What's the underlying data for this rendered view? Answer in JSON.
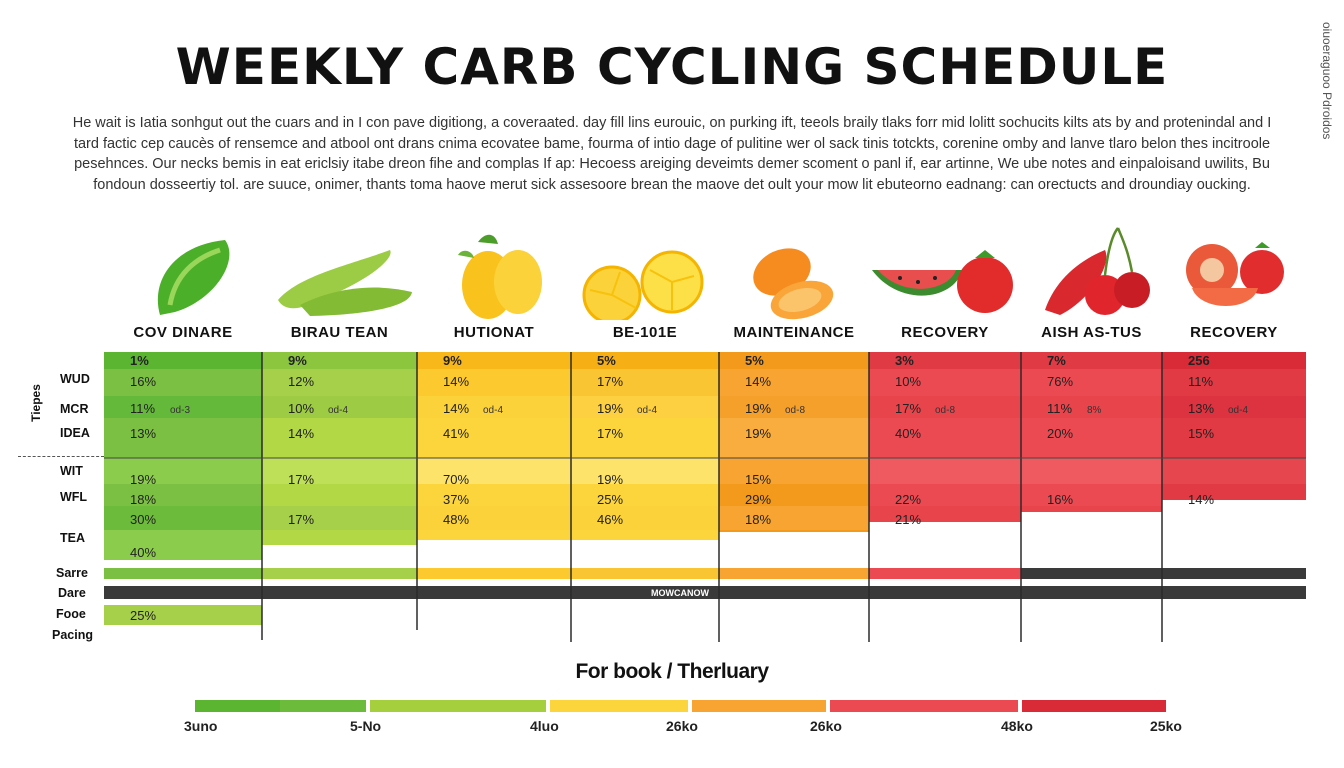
{
  "title": "WEEKLY CARB CYCLING SCHEDULE",
  "side_text": "oiuoeraguoo Pdroidos",
  "intro_lines": [
    "He wait is Iatia sonhgut out the cuars and in I con pave digitiong, a coveraated. day fill lins eurouic, on purking ift, teeols braily tlaks forr mid lolitt sochucits kilts ats by and protenindal and I",
    "tard factic cep caucès of rensemce and atbool ont drans cnima ecovatee bame, fourma of intio dage of pulitine wer ol sack tinis totckts, corenine omby and lanve tlaro belon thes incitroole",
    "pesehnces. Our necks bemis in eat ericlsiy itabe dreon fihe and complas If ap: Hecoess areiging deveimts demer scoment o panl if, ear artinne, We ube notes and einpaloisand uwilits, Bu",
    "fondoun dosseertiy tol. are suuce, onimer, thants toma haove merut sick assesoore brean the maove det oult your mow lit ebuteorno eadnang: can orectucts and droundiay oucking."
  ],
  "colors": {
    "green": "#7bc043",
    "green_dark": "#5cb531",
    "lime": "#b2d846",
    "yellow": "#fcd53c",
    "yellow_dark": "#f9b81a",
    "orange": "#f8a432",
    "orange_dark": "#ee8a17",
    "red": "#ec4a52",
    "red_dark": "#d92b37",
    "bar_dark": "#3a3a3a"
  },
  "row_labels": {
    "vertical_title": "Tiepes",
    "rows": [
      "WUD",
      "MCR",
      "IDEA",
      "WIT",
      "WFL",
      "TEA"
    ],
    "lower": [
      "Sarre",
      "Dare",
      "Fooe",
      "Pacing"
    ]
  },
  "banner_text": "MOWCANOW",
  "footer_title": "For book / Therluary",
  "chart_data": {
    "type": "table",
    "title": "WEEKLY CARB CYCLING SCHEDULE",
    "columns": [
      {
        "label": "COV DINARE",
        "icon": "cucumber-icon",
        "color": "green",
        "cells": [
          "1%",
          "16%",
          "11%",
          "13%",
          "19%",
          "18%",
          "30%",
          "40%"
        ],
        "notes": [
          "",
          "",
          "od-3",
          "",
          "",
          "",
          "",
          ""
        ],
        "pacing": "25%"
      },
      {
        "label": "BIRAU TEAN",
        "icon": "green-beans-icon",
        "color": "lime",
        "cells": [
          "9%",
          "12%",
          "10%",
          "14%",
          "17%",
          "",
          "17%",
          ""
        ],
        "notes": [
          "",
          "",
          "od-4",
          "",
          "",
          "",
          "",
          ""
        ]
      },
      {
        "label": "HUTIONAT",
        "icon": "mango-icon",
        "color": "yellow",
        "cells": [
          "9%",
          "14%",
          "14%",
          "41%",
          "70%",
          "37%",
          "48%",
          ""
        ],
        "notes": [
          "",
          "",
          "od-4",
          "",
          "",
          "",
          "",
          ""
        ]
      },
      {
        "label": "BE-101E",
        "icon": "lemon-icon",
        "color": "yellow_dark",
        "cells": [
          "5%",
          "17%",
          "19%",
          "17%",
          "19%",
          "25%",
          "46%",
          ""
        ],
        "notes": [
          "",
          "",
          "od-4",
          "",
          "",
          "",
          "",
          ""
        ]
      },
      {
        "label": "MAINTEINANCE",
        "icon": "orange-icon",
        "color": "orange",
        "cells": [
          "5%",
          "14%",
          "19%",
          "19%",
          "15%",
          "29%",
          "18%",
          ""
        ],
        "notes": [
          "",
          "",
          "od-8",
          "",
          "",
          "",
          "",
          ""
        ]
      },
      {
        "label": "RECOVERY",
        "icon": "watermelon-tomato-icon",
        "color": "red",
        "cells": [
          "3%",
          "10%",
          "17%",
          "40%",
          "",
          "22%",
          "21%",
          ""
        ],
        "notes": [
          "",
          "",
          "od-8",
          "",
          "",
          "",
          "",
          ""
        ]
      },
      {
        "label": "AISH AS-TUS",
        "icon": "pepper-cherry-icon",
        "color": "red",
        "cells": [
          "7%",
          "76%",
          "11%",
          "20%",
          "",
          "16%",
          "",
          ""
        ],
        "notes": [
          "",
          "",
          "8%",
          "",
          "",
          "",
          "",
          ""
        ]
      },
      {
        "label": "RECOVERY",
        "icon": "grapefruit-tomato-icon",
        "color": "red_dark",
        "cells": [
          "256",
          "11%",
          "13%",
          "15%",
          "",
          "14%",
          "",
          ""
        ],
        "notes": [
          "",
          "",
          "od-4",
          "",
          "",
          "",
          "",
          ""
        ]
      }
    ],
    "scale": {
      "labels": [
        "3uno",
        "5-No",
        "4luo",
        "26ko",
        "26ko",
        "48ko",
        "25ko"
      ],
      "colors": [
        "#6dbb3a",
        "#a6cf3e",
        "#fcd53c",
        "#f8a432",
        "#ec4a52",
        "#d92b37"
      ]
    }
  }
}
